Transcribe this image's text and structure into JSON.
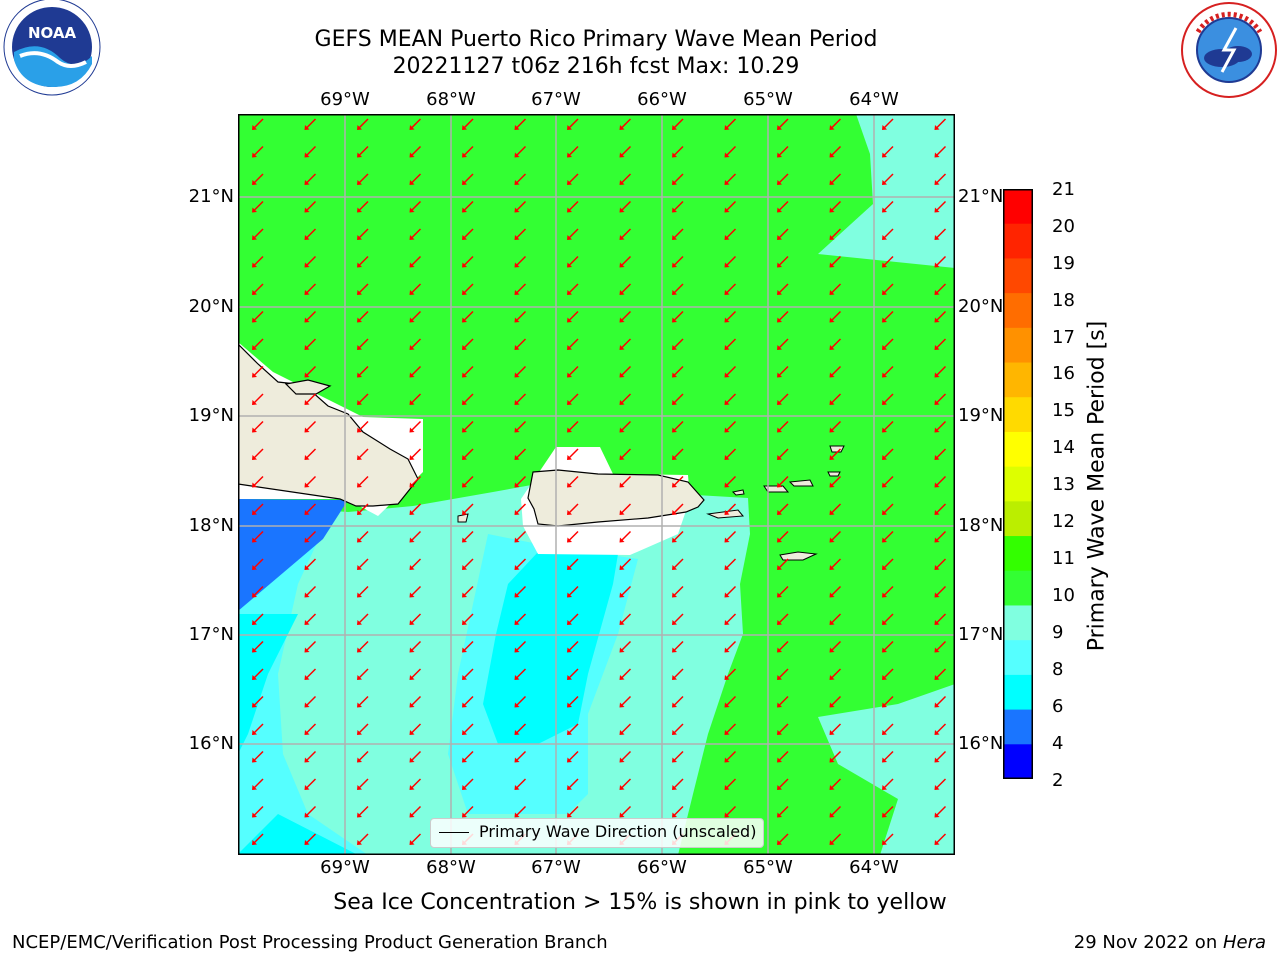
{
  "header": {
    "title_line1": "GEFS MEAN Puerto Rico Primary Wave Mean Period",
    "title_line2": "20221127 t06z 216h fcst   Max: 10.29"
  },
  "logos": {
    "left": {
      "name": "NOAA",
      "ring_text": "NATIONAL OCEANIC AND ATMOSPHERIC ADMINISTRATION · U.S. DEPARTMENT OF COMMERCE"
    },
    "right": {
      "name": "National Weather Service",
      "ring_text": "NATIONAL WEATHER SERVICE"
    }
  },
  "map": {
    "lon_labels": [
      "69°W",
      "68°W",
      "67°W",
      "66°W",
      "65°W",
      "64°W"
    ],
    "lat_labels": [
      "21°N",
      "20°N",
      "19°N",
      "18°N",
      "17°N",
      "16°N"
    ],
    "legend_label": "Primary Wave Direction (unscaled)",
    "arrow_color": "#ff0000",
    "field_colors": {
      "green": "#33ff33",
      "aqua": "#80ffe0",
      "light_cyan": "#55ffff",
      "cyan": "#00ffff",
      "blue": "#1a75ff",
      "land": "#eeecdc"
    }
  },
  "colorbar": {
    "title": "Primary Wave Mean Period [s]",
    "ticks": [
      "21",
      "20",
      "19",
      "18",
      "17",
      "16",
      "15",
      "14",
      "13",
      "12",
      "11",
      "10",
      "9",
      "8",
      "6",
      "4",
      "2"
    ],
    "colors": [
      "#ff0000",
      "#ff2400",
      "#ff4800",
      "#ff6d00",
      "#ff9100",
      "#ffb600",
      "#ffda00",
      "#ffff00",
      "#ddff00",
      "#bbee00",
      "#88ee00",
      "#33ff00",
      "#33ff33",
      "#80ffe0",
      "#55ffff",
      "#00ffff",
      "#1a75ff",
      "#0000ff"
    ]
  },
  "caption": "Sea Ice Concentration > 15% is shown in pink to yellow",
  "footer": {
    "left": "NCEP/EMC/Verification Post Processing Product Generation Branch",
    "right_date": "29 Nov 2022 on ",
    "right_host": "Hera"
  }
}
